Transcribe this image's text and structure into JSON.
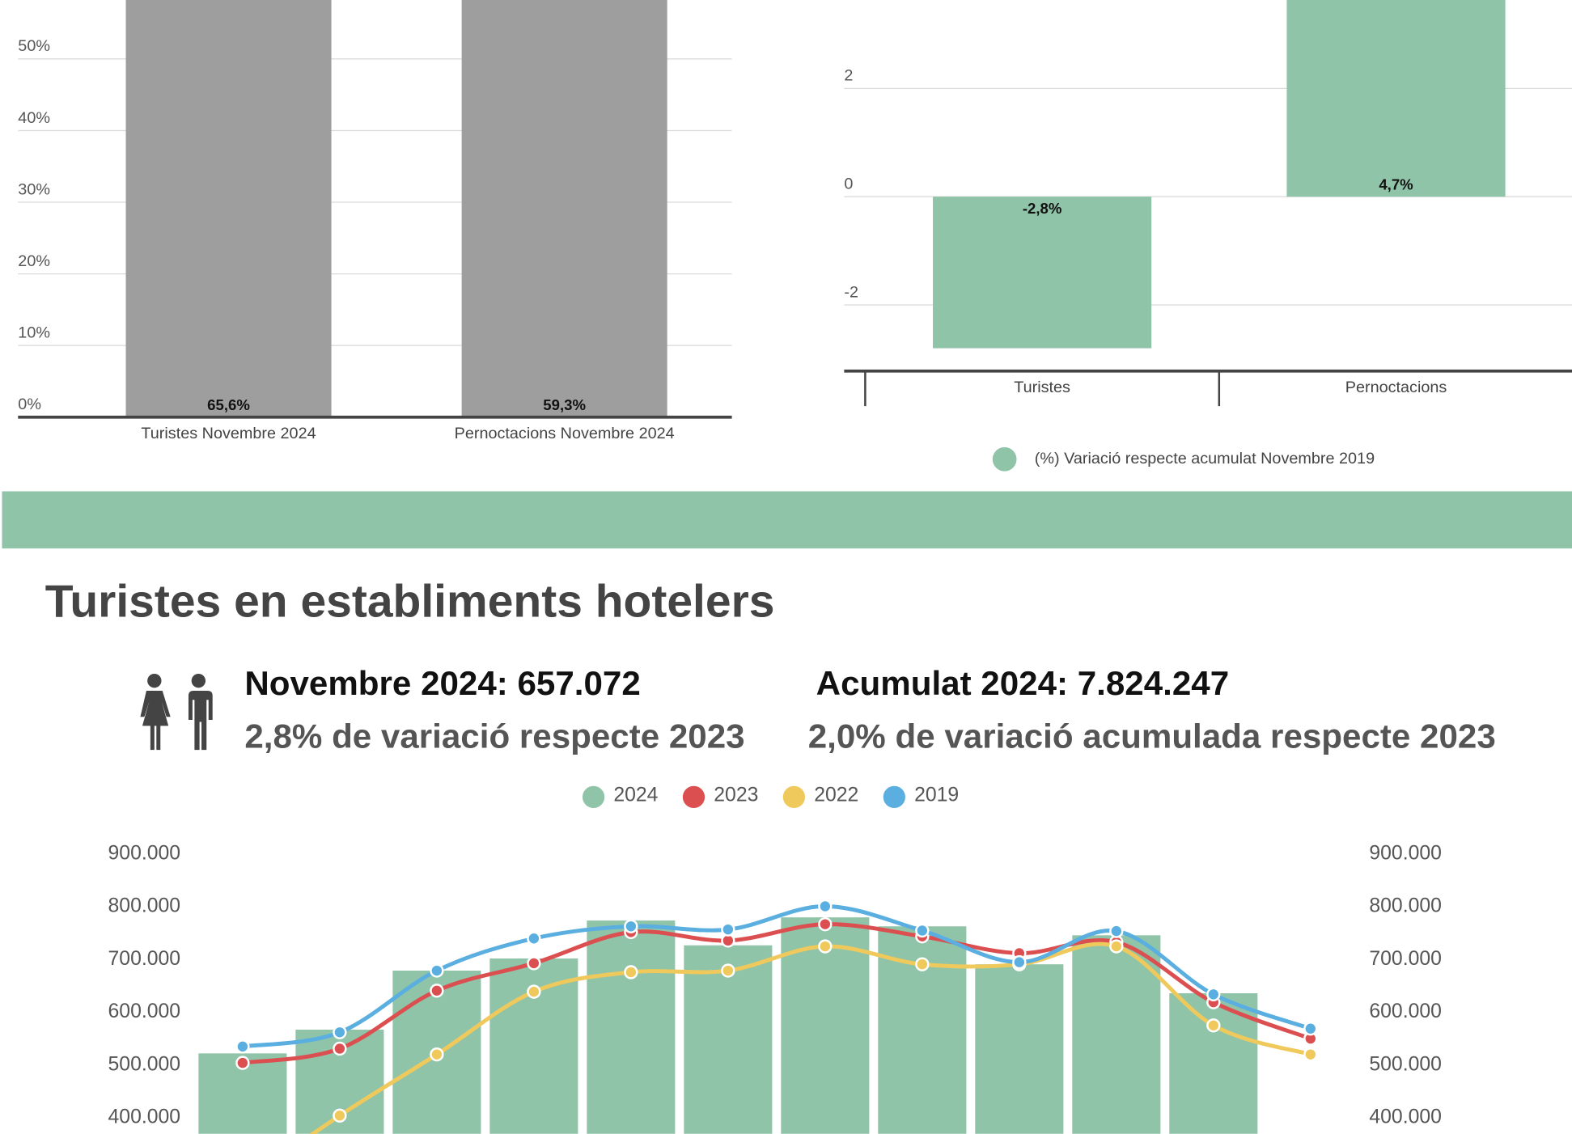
{
  "header": {
    "title": "Turistes en establiments hotelers",
    "kpis": [
      {
        "headline": "Novembre 2024: 657.072",
        "subline": "2,8% de variació respecte 2023"
      },
      {
        "headline": "Acumulat 2024: 7.824.247",
        "subline": "2,0% de variació acumulada respecte 2023"
      }
    ]
  },
  "chart_data": [
    {
      "type": "bar",
      "categories": [
        "Turistes Novembre 2024",
        "Pernoctacions Novembre 2024"
      ],
      "values": [
        65.6,
        59.3
      ],
      "value_labels": [
        "65,6%",
        "59,3%"
      ],
      "color": "#9e9e9e",
      "ylim": [
        0,
        58.2
      ],
      "yticks": [
        {
          "value": 0,
          "label": "0%"
        },
        {
          "value": 10,
          "label": "10%"
        },
        {
          "value": 20,
          "label": "20%"
        },
        {
          "value": 30,
          "label": "30%"
        },
        {
          "value": 40,
          "label": "40%"
        },
        {
          "value": 50,
          "label": "50%"
        }
      ],
      "grid": true
    },
    {
      "type": "bar",
      "categories": [
        "Turistes",
        "Pernoctacions"
      ],
      "series": [
        {
          "name": "(%) Variació respecte acumulat Novembre 2019",
          "color": "#8fc4a8",
          "values": [
            -2.8,
            4.7
          ],
          "value_labels": [
            "-2,8%",
            "4,7%"
          ]
        }
      ],
      "ylim": [
        -3.222,
        3.63
      ],
      "yticks": [
        -2,
        0,
        2
      ],
      "grid": true,
      "legend": "bottom"
    },
    {
      "type": "combo",
      "categories": [
        null,
        null,
        null,
        null,
        null,
        null,
        null,
        null,
        null,
        null,
        null,
        null
      ],
      "series": [
        {
          "name": "2024",
          "type": "bar",
          "color": "#8fc4a8",
          "values": [
            543000,
            588000,
            700000,
            723000,
            795000,
            748000,
            801000,
            784000,
            712000,
            767000,
            657072,
            null
          ]
        },
        {
          "name": "2023",
          "type": "line",
          "color": "#db4f50",
          "values": [
            525000,
            552000,
            662000,
            714000,
            773000,
            757000,
            788000,
            765000,
            733000,
            754000,
            640000,
            571000
          ]
        },
        {
          "name": "2022",
          "type": "line",
          "color": "#f0c95c",
          "values": [
            297000,
            425000,
            541000,
            660000,
            697000,
            700000,
            746000,
            712000,
            712000,
            746000,
            596000,
            541000
          ]
        },
        {
          "name": "2019",
          "type": "line",
          "color": "#5aafe0",
          "values": [
            556000,
            583000,
            700000,
            761000,
            784000,
            778000,
            822000,
            776000,
            716000,
            775000,
            655000,
            590000
          ]
        }
      ],
      "ylim": [
        390500,
        900000
      ],
      "yticks": [
        {
          "value": 400000,
          "label": "400.000"
        },
        {
          "value": 500000,
          "label": "500.000"
        },
        {
          "value": 600000,
          "label": "600.000"
        },
        {
          "value": 700000,
          "label": "700.000"
        },
        {
          "value": 800000,
          "label": "800.000"
        },
        {
          "value": 900000,
          "label": "900.000"
        }
      ],
      "y2lim": [
        390500,
        900000
      ],
      "y2ticks": [
        {
          "value": 400000,
          "label": "400.000"
        },
        {
          "value": 500000,
          "label": "500.000"
        },
        {
          "value": 600000,
          "label": "600.000"
        },
        {
          "value": 700000,
          "label": "700.000"
        },
        {
          "value": 800000,
          "label": "800.000"
        },
        {
          "value": 900000,
          "label": "900.000"
        }
      ],
      "legend": "top"
    }
  ]
}
